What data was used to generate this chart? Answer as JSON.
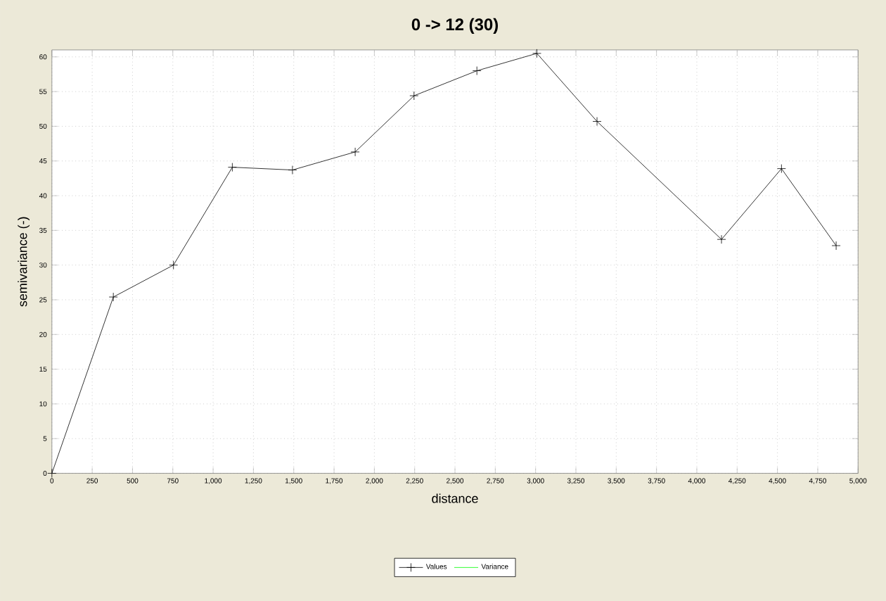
{
  "chart_data": {
    "type": "line",
    "title": "0 -> 12 (30)",
    "xlabel": "distance",
    "ylabel": "semivariance (-)",
    "x": [
      0,
      381,
      754,
      1119,
      1492,
      1881,
      2246,
      2636,
      3008,
      3381,
      4153,
      4525,
      4864
    ],
    "series": [
      {
        "name": "Values",
        "color": "#000000",
        "marker": "cross",
        "values": [
          0,
          25.4,
          30.0,
          44.1,
          43.7,
          46.3,
          54.4,
          58.0,
          60.5,
          50.7,
          33.7,
          43.9,
          32.8
        ]
      },
      {
        "name": "Variance",
        "color": "#00ff00",
        "marker": "none",
        "values": [
          null,
          null,
          null,
          null,
          null,
          null,
          null,
          null,
          null,
          null,
          null,
          null,
          null
        ]
      }
    ],
    "xlim": [
      0,
      5000
    ],
    "ylim": [
      0,
      61
    ],
    "xticks": [
      0,
      250,
      500,
      750,
      {
        "value": 1000,
        "label": "1,000"
      },
      {
        "value": 1250,
        "label": "1,250"
      },
      {
        "value": 1500,
        "label": "1,500"
      },
      {
        "value": 1750,
        "label": "1,750"
      },
      {
        "value": 2000,
        "label": "2,000"
      },
      {
        "value": 2250,
        "label": "2,250"
      },
      {
        "value": 2500,
        "label": "2,500"
      },
      {
        "value": 2750,
        "label": "2,750"
      },
      {
        "value": 3000,
        "label": "3,000"
      },
      {
        "value": 3250,
        "label": "3,250"
      },
      {
        "value": 3500,
        "label": "3,500"
      },
      {
        "value": 3750,
        "label": "3,750"
      },
      {
        "value": 4000,
        "label": "4,000"
      },
      {
        "value": 4250,
        "label": "4,250"
      },
      {
        "value": 4500,
        "label": "4,500"
      },
      {
        "value": 4750,
        "label": "4,750"
      },
      {
        "value": 5000,
        "label": "5,000"
      }
    ],
    "yticks": [
      0,
      5,
      10,
      15,
      20,
      25,
      30,
      35,
      40,
      45,
      50,
      55,
      60
    ],
    "grid": true,
    "legend": "bottom",
    "line_style": "solid"
  }
}
